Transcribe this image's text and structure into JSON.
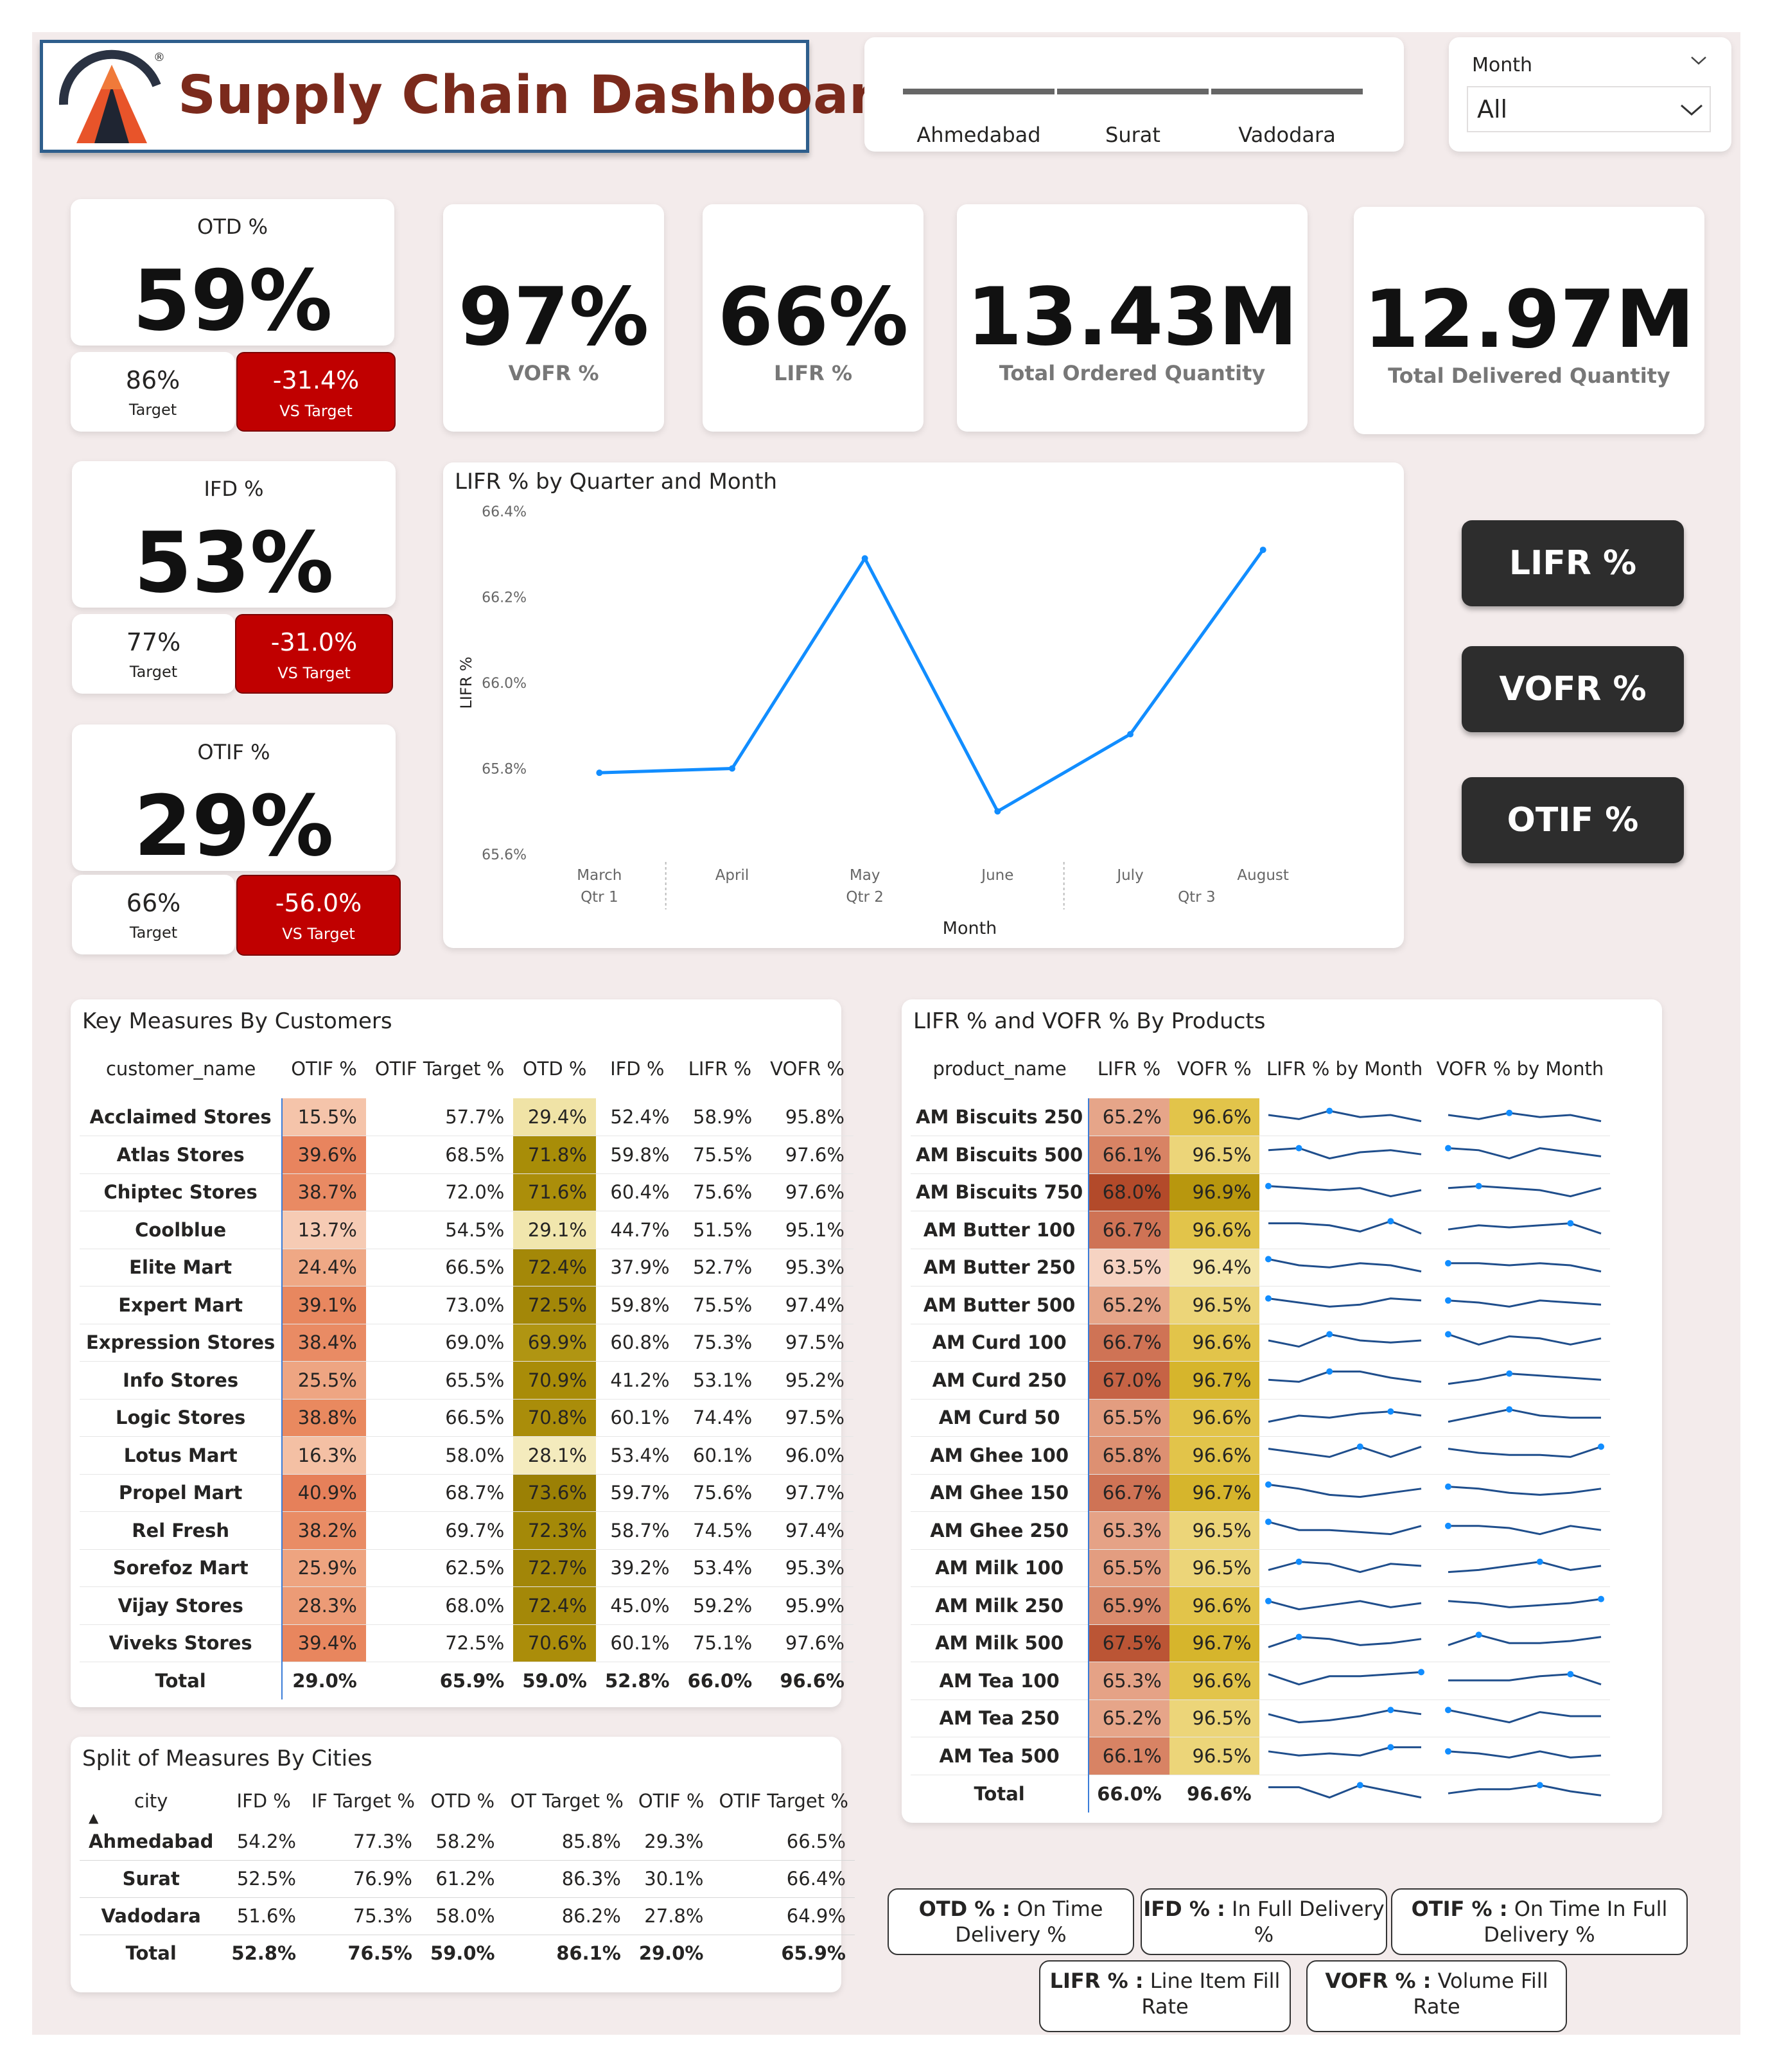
{
  "header": {
    "title": "Supply Chain Dashboard",
    "logo_mark": "®",
    "cities": [
      "Ahmedabad",
      "Surat",
      "Vadodara"
    ],
    "month_filter_label": "Month",
    "month_filter_value": "All"
  },
  "kpis": {
    "otd": {
      "title": "OTD %",
      "value": "59%",
      "target": "86%",
      "target_label": "Target",
      "vs": "-31.4%",
      "vs_label": "VS Target"
    },
    "ifd": {
      "title": "IFD %",
      "value": "53%",
      "target": "77%",
      "target_label": "Target",
      "vs": "-31.0%",
      "vs_label": "VS Target"
    },
    "otif": {
      "title": "OTIF %",
      "value": "29%",
      "target": "66%",
      "target_label": "Target",
      "vs": "-56.0%",
      "vs_label": "VS Target"
    },
    "vofr": {
      "value": "97%",
      "label": "VOFR %"
    },
    "lifr": {
      "value": "66%",
      "label": "LIFR %"
    },
    "ordered": {
      "value": "13.43M",
      "label": "Total Ordered Quantity"
    },
    "delivered": {
      "value": "12.97M",
      "label": "Total Delivered Quantity"
    }
  },
  "buttons": {
    "lifr": "LIFR %",
    "vofr": "VOFR %",
    "otif": "OTIF %"
  },
  "chart_data": {
    "type": "line",
    "title": "LIFR % by Quarter and Month",
    "xlabel": "Month",
    "ylabel": "LIFR %",
    "categories": [
      "March",
      "April",
      "May",
      "June",
      "July",
      "August"
    ],
    "quarters": [
      {
        "label": "Qtr 1",
        "months": [
          "March"
        ]
      },
      {
        "label": "Qtr 2",
        "months": [
          "April",
          "May",
          "June"
        ]
      },
      {
        "label": "Qtr 3",
        "months": [
          "July",
          "August"
        ]
      }
    ],
    "values": [
      65.79,
      65.8,
      66.29,
      65.7,
      65.88,
      66.31
    ],
    "ylim": [
      65.6,
      66.4
    ],
    "yticks": [
      "65.6%",
      "65.8%",
      "66.0%",
      "66.2%",
      "66.4%"
    ],
    "color": "#118dff"
  },
  "customers": {
    "title": "Key Measures By Customers",
    "columns": [
      "customer_name",
      "OTIF %",
      "OTIF Target %",
      "OTD %",
      "IFD %",
      "LIFR %",
      "VOFR %"
    ],
    "rows": [
      [
        "Acclaimed Stores",
        "15.5%",
        "57.7%",
        "29.4%",
        "52.4%",
        "58.9%",
        "95.8%"
      ],
      [
        "Atlas Stores",
        "39.6%",
        "68.5%",
        "71.8%",
        "59.8%",
        "75.5%",
        "97.6%"
      ],
      [
        "Chiptec Stores",
        "38.7%",
        "72.0%",
        "71.6%",
        "60.4%",
        "75.6%",
        "97.6%"
      ],
      [
        "Coolblue",
        "13.7%",
        "54.5%",
        "29.1%",
        "44.7%",
        "51.5%",
        "95.1%"
      ],
      [
        "Elite Mart",
        "24.4%",
        "66.5%",
        "72.4%",
        "37.9%",
        "52.7%",
        "95.3%"
      ],
      [
        "Expert Mart",
        "39.1%",
        "73.0%",
        "72.5%",
        "59.8%",
        "75.5%",
        "97.4%"
      ],
      [
        "Expression Stores",
        "38.4%",
        "69.0%",
        "69.9%",
        "60.8%",
        "75.3%",
        "97.5%"
      ],
      [
        "Info Stores",
        "25.5%",
        "65.5%",
        "70.9%",
        "41.2%",
        "53.1%",
        "95.2%"
      ],
      [
        "Logic Stores",
        "38.8%",
        "66.5%",
        "70.8%",
        "60.1%",
        "74.4%",
        "97.5%"
      ],
      [
        "Lotus Mart",
        "16.3%",
        "58.0%",
        "28.1%",
        "53.4%",
        "60.1%",
        "96.0%"
      ],
      [
        "Propel Mart",
        "40.9%",
        "68.7%",
        "73.6%",
        "59.7%",
        "75.6%",
        "97.7%"
      ],
      [
        "Rel Fresh",
        "38.2%",
        "69.7%",
        "72.3%",
        "58.7%",
        "74.5%",
        "97.4%"
      ],
      [
        "Sorefoz Mart",
        "25.9%",
        "62.5%",
        "72.7%",
        "39.2%",
        "53.4%",
        "95.3%"
      ],
      [
        "Vijay Stores",
        "28.3%",
        "68.0%",
        "72.4%",
        "45.0%",
        "59.2%",
        "95.9%"
      ],
      [
        "Viveks Stores",
        "39.4%",
        "72.5%",
        "70.6%",
        "60.1%",
        "75.1%",
        "97.6%"
      ]
    ],
    "total": [
      "Total",
      "29.0%",
      "65.9%",
      "59.0%",
      "52.8%",
      "66.0%",
      "96.6%"
    ],
    "colors": {
      "otif": [
        "#f5c4aa",
        "#e8845e",
        "#e98a63",
        "#f6cbb4",
        "#efa885",
        "#e8875f",
        "#e98b64",
        "#eea582",
        "#e9895f",
        "#f4c0a4",
        "#e6805a",
        "#e98c65",
        "#eea480",
        "#ec9b76",
        "#e8865e"
      ],
      "otd": [
        "#f0e3a6",
        "#a88d08",
        "#ab8e0a",
        "#f1e6ad",
        "#a48808",
        "#a38708",
        "#b09512",
        "#a98c08",
        "#aa8d0a",
        "#f4ebbd",
        "#9b8005",
        "#a48908",
        "#a28608",
        "#a48808",
        "#ab8d0a"
      ]
    }
  },
  "products": {
    "title": "LIFR % and VOFR % By Products",
    "columns": [
      "product_name",
      "LIFR %",
      "VOFR %",
      "LIFR % by Month",
      "VOFR % by Month"
    ],
    "rows": [
      [
        "AM Biscuits 250",
        "65.2%",
        "96.6%"
      ],
      [
        "AM Biscuits 500",
        "66.1%",
        "96.5%"
      ],
      [
        "AM Biscuits 750",
        "68.0%",
        "96.9%"
      ],
      [
        "AM Butter 100",
        "66.7%",
        "96.6%"
      ],
      [
        "AM Butter 250",
        "63.5%",
        "96.4%"
      ],
      [
        "AM Butter 500",
        "65.2%",
        "96.5%"
      ],
      [
        "AM Curd 100",
        "66.7%",
        "96.6%"
      ],
      [
        "AM Curd 250",
        "67.0%",
        "96.7%"
      ],
      [
        "AM Curd 50",
        "65.5%",
        "96.6%"
      ],
      [
        "AM Ghee 100",
        "65.8%",
        "96.6%"
      ],
      [
        "AM Ghee 150",
        "66.7%",
        "96.7%"
      ],
      [
        "AM Ghee 250",
        "65.3%",
        "96.5%"
      ],
      [
        "AM Milk 100",
        "65.5%",
        "96.5%"
      ],
      [
        "AM Milk 250",
        "65.9%",
        "96.6%"
      ],
      [
        "AM Milk 500",
        "67.5%",
        "96.7%"
      ],
      [
        "AM Tea 100",
        "65.3%",
        "96.6%"
      ],
      [
        "AM Tea 250",
        "65.2%",
        "96.5%"
      ],
      [
        "AM Tea 500",
        "66.1%",
        "96.5%"
      ]
    ],
    "total": [
      "Total",
      "66.0%",
      "96.6%"
    ],
    "colors": {
      "lifr": [
        "#e6a589",
        "#d88364",
        "#b34a2a",
        "#cf7355",
        "#f6d3c2",
        "#e6a589",
        "#cf7355",
        "#c66345",
        "#e39d80",
        "#dd9072",
        "#cf7355",
        "#e5a286",
        "#e39d80",
        "#da8a6c",
        "#bb5535",
        "#e5a286",
        "#e6a589",
        "#d88364"
      ],
      "vofr": [
        "#e2c44a",
        "#ecd579",
        "#b8970e",
        "#e2c44a",
        "#f3e5a8",
        "#ecd579",
        "#e2c44a",
        "#d6b52c",
        "#e2c44a",
        "#e2c44a",
        "#d6b52c",
        "#ecd579",
        "#ecd579",
        "#e2c44a",
        "#d6b52c",
        "#e2c44a",
        "#ecd579",
        "#ecd579"
      ]
    },
    "sparklines_lifr": [
      [
        0.5,
        0.3,
        0.7,
        0.4,
        0.5,
        0.2
      ],
      [
        0.6,
        0.7,
        0.2,
        0.5,
        0.6,
        0.4
      ],
      [
        0.7,
        0.6,
        0.5,
        0.6,
        0.2,
        0.5
      ],
      [
        0.7,
        0.7,
        0.6,
        0.3,
        0.8,
        0.2
      ],
      [
        0.8,
        0.5,
        0.4,
        0.6,
        0.5,
        0.2
      ],
      [
        0.7,
        0.5,
        0.3,
        0.4,
        0.7,
        0.6
      ],
      [
        0.5,
        0.2,
        0.8,
        0.5,
        0.4,
        0.5
      ],
      [
        0.4,
        0.3,
        0.8,
        0.8,
        0.5,
        0.3
      ],
      [
        0.2,
        0.5,
        0.4,
        0.6,
        0.7,
        0.5
      ],
      [
        0.7,
        0.5,
        0.3,
        0.8,
        0.3,
        0.8
      ],
      [
        0.8,
        0.6,
        0.3,
        0.2,
        0.4,
        0.6
      ],
      [
        0.8,
        0.4,
        0.4,
        0.3,
        0.2,
        0.6
      ],
      [
        0.3,
        0.7,
        0.6,
        0.2,
        0.6,
        0.5
      ],
      [
        0.6,
        0.2,
        0.4,
        0.6,
        0.3,
        0.5
      ],
      [
        0.2,
        0.7,
        0.6,
        0.3,
        0.4,
        0.6
      ],
      [
        0.7,
        0.2,
        0.6,
        0.6,
        0.7,
        0.8
      ],
      [
        0.6,
        0.2,
        0.3,
        0.5,
        0.8,
        0.6
      ],
      [
        0.6,
        0.4,
        0.5,
        0.4,
        0.8,
        0.8
      ]
    ],
    "sparklines_vofr": [
      [
        0.5,
        0.3,
        0.6,
        0.4,
        0.5,
        0.2
      ],
      [
        0.7,
        0.6,
        0.2,
        0.7,
        0.5,
        0.3
      ],
      [
        0.6,
        0.7,
        0.6,
        0.5,
        0.2,
        0.6
      ],
      [
        0.4,
        0.6,
        0.5,
        0.6,
        0.7,
        0.2
      ],
      [
        0.6,
        0.6,
        0.5,
        0.6,
        0.5,
        0.2
      ],
      [
        0.6,
        0.5,
        0.3,
        0.6,
        0.5,
        0.4
      ],
      [
        0.8,
        0.3,
        0.7,
        0.6,
        0.3,
        0.6
      ],
      [
        0.2,
        0.4,
        0.7,
        0.6,
        0.5,
        0.4
      ],
      [
        0.2,
        0.5,
        0.8,
        0.5,
        0.4,
        0.4
      ],
      [
        0.7,
        0.5,
        0.4,
        0.4,
        0.3,
        0.8
      ],
      [
        0.7,
        0.6,
        0.4,
        0.3,
        0.4,
        0.6
      ],
      [
        0.6,
        0.6,
        0.5,
        0.2,
        0.6,
        0.4
      ],
      [
        0.2,
        0.3,
        0.5,
        0.7,
        0.3,
        0.5
      ],
      [
        0.6,
        0.5,
        0.3,
        0.4,
        0.5,
        0.7
      ],
      [
        0.3,
        0.8,
        0.4,
        0.4,
        0.5,
        0.7
      ],
      [
        0.4,
        0.4,
        0.4,
        0.6,
        0.7,
        0.2
      ],
      [
        0.8,
        0.5,
        0.2,
        0.7,
        0.5,
        0.5
      ],
      [
        0.6,
        0.5,
        0.3,
        0.6,
        0.3,
        0.4
      ]
    ],
    "sparkline_total_lifr": [
      0.7,
      0.7,
      0.2,
      0.8,
      0.5,
      0.2
    ],
    "sparkline_total_vofr": [
      0.4,
      0.6,
      0.6,
      0.8,
      0.5,
      0.3
    ]
  },
  "cities_table": {
    "title": "Split of Measures By Cities",
    "sort_icon": "▲",
    "columns": [
      "city",
      "IFD %",
      "IF Target %",
      "OTD %",
      "OT Target %",
      "OTIF %",
      "OTIF Target %"
    ],
    "rows": [
      [
        "Ahmedabad",
        "54.2%",
        "77.3%",
        "58.2%",
        "85.8%",
        "29.3%",
        "66.5%"
      ],
      [
        "Surat",
        "52.5%",
        "76.9%",
        "61.2%",
        "86.3%",
        "30.1%",
        "66.4%"
      ],
      [
        "Vadodara",
        "51.6%",
        "75.3%",
        "58.0%",
        "86.2%",
        "27.8%",
        "64.9%"
      ]
    ],
    "total": [
      "Total",
      "52.8%",
      "76.5%",
      "59.0%",
      "86.1%",
      "29.0%",
      "65.9%"
    ]
  },
  "legend": {
    "otd": {
      "key": "OTD % :",
      "text": "On Time Delivery %"
    },
    "ifd": {
      "key": "IFD % :",
      "text": "In Full Delivery %"
    },
    "otif": {
      "key": "OTIF % :",
      "text": "On Time In Full Delivery %"
    },
    "lifr": {
      "key": "LIFR % :",
      "text": "Line Item Fill Rate"
    },
    "vofr": {
      "key": "VOFR % :",
      "text": "Volume Fill Rate"
    }
  }
}
